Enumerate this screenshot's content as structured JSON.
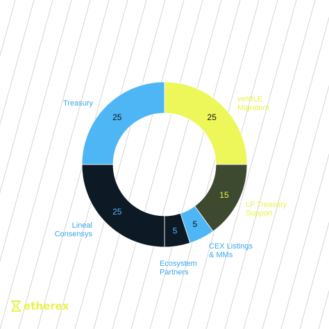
{
  "title": "",
  "brand": {
    "name": "etherex",
    "logo_icon": "etherex-logo-icon",
    "color": "#e8f34a"
  },
  "chart_data": {
    "type": "pie",
    "variant": "donut",
    "title": "",
    "legend": "none",
    "slices": [
      {
        "label": "veNILE\nMigrators",
        "value": 25,
        "color": "#edf75a",
        "label_color": "#e8f34a",
        "value_color": "#111111"
      },
      {
        "label": "LP Treasury\nSupport",
        "value": 15,
        "color": "#3d4a30",
        "label_color": "#e8f34a",
        "value_color": "#e8f34a"
      },
      {
        "label": "CEX Listings\n& MMs",
        "value": 5,
        "color": "#4fb6f5",
        "label_color": "#3aa6e8",
        "value_color": "#111111"
      },
      {
        "label": "Ecosystem\nPartners",
        "value": 5,
        "color": "#0d1924",
        "label_color": "#3aa6e8",
        "value_color": "#4fb6f5"
      },
      {
        "label": "Lineal\nConsensys",
        "value": 25,
        "color": "#0d1924",
        "label_color": "#3aa6e8",
        "value_color": "#4fb6f5"
      },
      {
        "label": "Treasury",
        "value": 25,
        "color": "#4fb6f5",
        "label_color": "#3aa6e8",
        "value_color": "#111111"
      }
    ]
  }
}
